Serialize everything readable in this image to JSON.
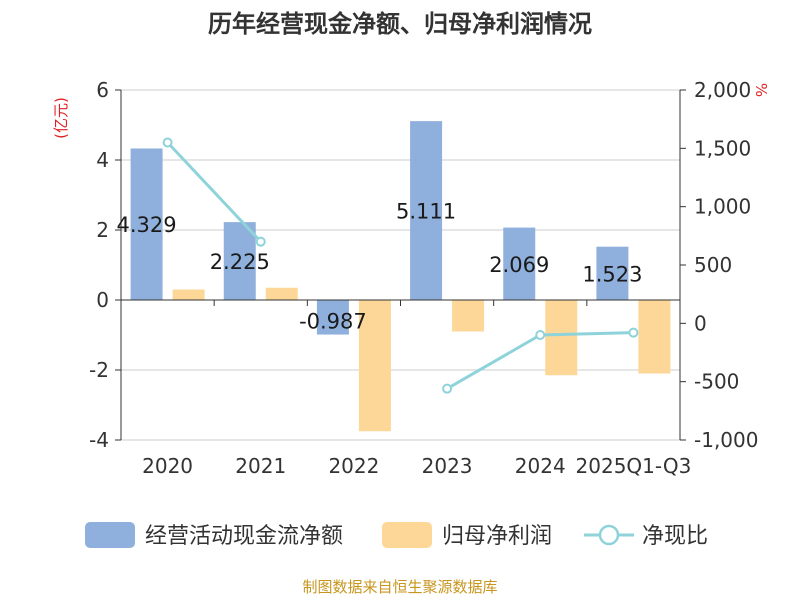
{
  "chart_data": {
    "type": "bar",
    "title": "历年经营现金净额、归母净利润情况",
    "left_axis_unit": "(亿元)",
    "right_axis_unit": "%",
    "categories": [
      "2020",
      "2021",
      "2022",
      "2023",
      "2024",
      "2025Q1-Q3"
    ],
    "series": [
      {
        "name": "经营活动现金流净额",
        "type": "bar",
        "axis": "left",
        "color": "#8fb0dc",
        "values": [
          4.329,
          2.225,
          -0.987,
          5.111,
          2.069,
          1.523
        ],
        "data_labels": [
          "4.329",
          "2.225",
          "-0.987",
          "5.111",
          "2.069",
          "1.523"
        ]
      },
      {
        "name": "归母净利润",
        "type": "bar",
        "axis": "left",
        "color": "#fdd797",
        "values": [
          0.3,
          0.35,
          -3.75,
          -0.9,
          -2.15,
          -2.1
        ]
      },
      {
        "name": "净现比",
        "type": "line",
        "axis": "right",
        "color": "#8ed3da",
        "values": [
          1550,
          700,
          null,
          -560,
          -100,
          -80
        ]
      }
    ],
    "left_ylim": [
      -4,
      6
    ],
    "left_ticks": [
      "-4",
      "-2",
      "0",
      "2",
      "4",
      "6"
    ],
    "right_ylim": [
      -1000,
      2000
    ],
    "right_ticks": [
      "-1,000",
      "-500",
      "0",
      "500",
      "1,000",
      "1,500",
      "2,000"
    ],
    "grid": true,
    "legend_position": "bottom",
    "source": "制图数据来自恒生聚源数据库"
  }
}
